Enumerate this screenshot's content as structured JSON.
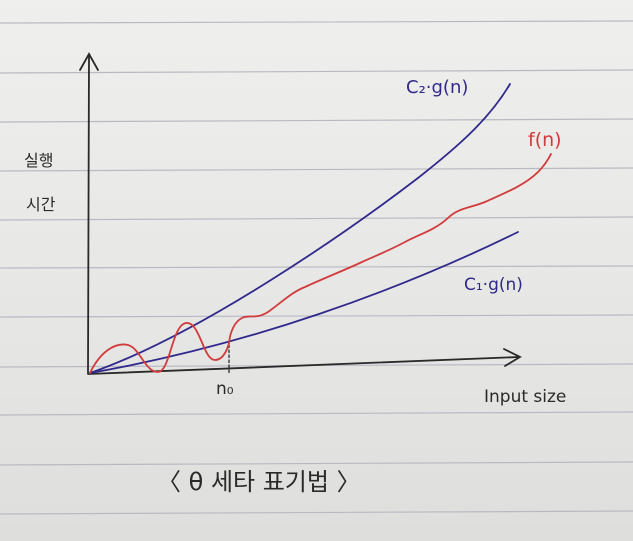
{
  "diagram": {
    "ylabel_line1": "실행",
    "ylabel_line2": "시간",
    "xlabel": "Input size",
    "x_marker": "n₀",
    "upper_bound_label": "C₂·g(n)",
    "lower_bound_label": "C₁·g(n)",
    "function_label": "f(n)",
    "caption": "〈 θ 세타 표기법 〉",
    "colors": {
      "bound": "#2f2a8c",
      "function": "#d23b3b",
      "axis": "#2a2a2a",
      "rule_line": "#b9b9c4"
    }
  }
}
